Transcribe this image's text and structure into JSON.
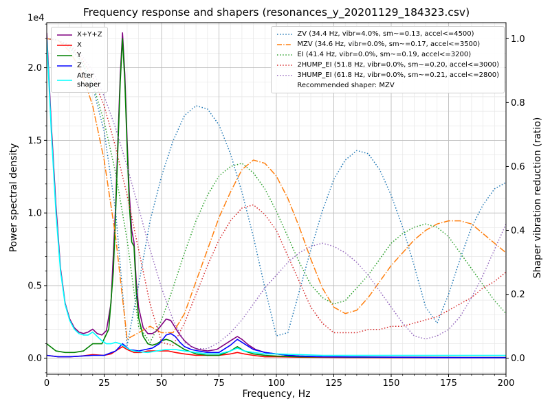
{
  "chart_data": {
    "type": "line",
    "title": "Frequency response and shapers (resonances_y_20201129_184323.csv)",
    "xlabel": "Frequency, Hz",
    "ylabel": "Power spectral density",
    "ylabel_right": "Shaper vibration reduction (ratio)",
    "y_left_offset_text": "1e4",
    "x_range": [
      0,
      200
    ],
    "y_left_range": [
      -0.11,
      2.31
    ],
    "y_right_range": [
      -0.05,
      1.05
    ],
    "x_ticks": [
      "0",
      "25",
      "50",
      "75",
      "100",
      "125",
      "150",
      "175",
      "200"
    ],
    "y_left_ticks": [
      "0.0",
      "0.5",
      "1.0",
      "1.5",
      "2.0"
    ],
    "y_right_ticks": [
      "0.0",
      "0.2",
      "0.4",
      "0.6",
      "0.8",
      "1.0"
    ],
    "x_minor_step": 5,
    "y_left_minor_step": 0.1,
    "grid": true,
    "legend_left_loc": "upper left",
    "legend_right_loc": "upper right",
    "recommended_shaper_note": "Recommended shaper: MZV",
    "colors": {
      "grid_major": "#bdbdbd",
      "grid_minor": "#e6e6e6",
      "spine": "#000000"
    },
    "psd_series": [
      {
        "key": "xyz",
        "label": "X+Y+Z",
        "color": "#800080",
        "style": "solid",
        "axis": "left",
        "x": [
          0,
          2,
          4,
          6,
          8,
          10,
          12,
          14,
          16,
          18,
          20,
          22,
          24,
          26,
          28,
          30,
          31,
          32,
          33,
          34,
          35,
          36,
          37,
          38,
          39,
          40,
          42,
          44,
          46,
          48,
          50,
          52,
          54,
          56,
          58,
          60,
          63,
          66,
          70,
          74,
          78,
          81,
          83,
          85,
          88,
          91,
          95,
          100,
          105,
          110,
          120,
          140,
          160,
          180,
          200
        ],
        "y": [
          2.24,
          1.6,
          1.05,
          0.62,
          0.38,
          0.27,
          0.21,
          0.18,
          0.17,
          0.18,
          0.2,
          0.17,
          0.16,
          0.19,
          0.38,
          1.05,
          1.5,
          1.95,
          2.24,
          1.95,
          1.5,
          1.12,
          0.88,
          0.8,
          0.52,
          0.35,
          0.21,
          0.17,
          0.17,
          0.19,
          0.23,
          0.27,
          0.26,
          0.21,
          0.16,
          0.12,
          0.08,
          0.06,
          0.05,
          0.06,
          0.1,
          0.13,
          0.15,
          0.13,
          0.09,
          0.06,
          0.04,
          0.03,
          0.02,
          0.015,
          0.01,
          0.008,
          0.007,
          0.006,
          0.006
        ]
      },
      {
        "key": "x",
        "label": "X",
        "color": "#ff0000",
        "style": "solid",
        "axis": "left",
        "x": [
          0,
          5,
          10,
          15,
          20,
          25,
          28,
          31,
          33,
          35,
          38,
          41,
          44,
          47,
          50,
          53,
          56,
          60,
          65,
          70,
          75,
          80,
          83,
          86,
          90,
          95,
          100,
          110,
          130,
          160,
          200
        ],
        "y": [
          0.02,
          0.01,
          0.01,
          0.015,
          0.025,
          0.02,
          0.03,
          0.06,
          0.08,
          0.06,
          0.04,
          0.04,
          0.05,
          0.05,
          0.05,
          0.05,
          0.04,
          0.03,
          0.02,
          0.02,
          0.02,
          0.03,
          0.04,
          0.03,
          0.02,
          0.01,
          0.01,
          0.007,
          0.005,
          0.004,
          0.004
        ]
      },
      {
        "key": "y",
        "label": "Y",
        "color": "#008000",
        "style": "solid",
        "axis": "left",
        "x": [
          0,
          4,
          8,
          12,
          16,
          20,
          24,
          27,
          29,
          30,
          31,
          32,
          33,
          34,
          35,
          36,
          37,
          38,
          39,
          40,
          42,
          44,
          46,
          48,
          50,
          52,
          54,
          57,
          60,
          65,
          70,
          75,
          80,
          83,
          86,
          90,
          95,
          100,
          110,
          130,
          160,
          200
        ],
        "y": [
          0.1,
          0.05,
          0.04,
          0.04,
          0.05,
          0.1,
          0.1,
          0.2,
          0.6,
          1.0,
          1.45,
          1.9,
          2.2,
          1.9,
          1.45,
          1.05,
          0.8,
          0.77,
          0.45,
          0.28,
          0.15,
          0.1,
          0.09,
          0.1,
          0.12,
          0.13,
          0.12,
          0.09,
          0.06,
          0.03,
          0.02,
          0.02,
          0.05,
          0.08,
          0.05,
          0.03,
          0.02,
          0.015,
          0.01,
          0.008,
          0.006,
          0.005
        ]
      },
      {
        "key": "z",
        "label": "Z",
        "color": "#0000ff",
        "style": "solid",
        "axis": "left",
        "x": [
          0,
          5,
          10,
          15,
          20,
          25,
          30,
          33,
          36,
          40,
          43,
          46,
          49,
          52,
          54,
          56,
          58,
          60,
          63,
          66,
          70,
          75,
          80,
          83,
          86,
          90,
          95,
          100,
          105,
          110,
          120,
          140,
          170,
          200
        ],
        "y": [
          0.02,
          0.01,
          0.01,
          0.015,
          0.02,
          0.02,
          0.05,
          0.1,
          0.06,
          0.05,
          0.06,
          0.07,
          0.1,
          0.16,
          0.17,
          0.15,
          0.11,
          0.08,
          0.06,
          0.05,
          0.04,
          0.04,
          0.09,
          0.13,
          0.1,
          0.06,
          0.04,
          0.03,
          0.02,
          0.015,
          0.01,
          0.008,
          0.005,
          0.004
        ]
      },
      {
        "key": "after_shaper",
        "label": "After\nshaper",
        "color": "#00ffff",
        "style": "solid",
        "axis": "left",
        "x": [
          0,
          2,
          4,
          6,
          8,
          10,
          12,
          14,
          16,
          18,
          20,
          22,
          24,
          26,
          28,
          30,
          32,
          34,
          36,
          38,
          40,
          44,
          48,
          52,
          56,
          60,
          65,
          70,
          75,
          80,
          83,
          86,
          90,
          95,
          100,
          110,
          120,
          140,
          160,
          180,
          200
        ],
        "y": [
          2.2,
          1.55,
          1.0,
          0.6,
          0.37,
          0.26,
          0.2,
          0.17,
          0.16,
          0.16,
          0.18,
          0.15,
          0.12,
          0.1,
          0.1,
          0.11,
          0.1,
          0.08,
          0.06,
          0.05,
          0.045,
          0.04,
          0.05,
          0.06,
          0.06,
          0.05,
          0.04,
          0.03,
          0.03,
          0.05,
          0.07,
          0.05,
          0.04,
          0.03,
          0.03,
          0.025,
          0.02,
          0.02,
          0.02,
          0.02,
          0.02
        ]
      }
    ],
    "shaper_x": [
      0,
      5,
      10,
      15,
      20,
      25,
      30,
      35,
      40,
      45,
      50,
      55,
      60,
      65,
      70,
      75,
      80,
      85,
      90,
      95,
      100,
      105,
      110,
      115,
      120,
      125,
      130,
      135,
      140,
      145,
      150,
      155,
      160,
      165,
      170,
      175,
      180,
      185,
      190,
      195,
      200
    ],
    "shaper_series": [
      {
        "key": "zv",
        "label": "ZV (34.4 Hz, vibr=4.0%, sm~=0.13, accel<=4500)",
        "color": "#1f77b4",
        "style": "dotted",
        "axis": "right",
        "y": [
          1.0,
          0.995,
          0.97,
          0.93,
          0.85,
          0.71,
          0.46,
          0.04,
          0.23,
          0.43,
          0.57,
          0.68,
          0.76,
          0.79,
          0.78,
          0.73,
          0.64,
          0.52,
          0.38,
          0.22,
          0.07,
          0.08,
          0.21,
          0.34,
          0.46,
          0.56,
          0.62,
          0.65,
          0.64,
          0.59,
          0.51,
          0.41,
          0.29,
          0.16,
          0.11,
          0.2,
          0.31,
          0.41,
          0.48,
          0.53,
          0.55
        ]
      },
      {
        "key": "mzv",
        "label": "MZV (34.6 Hz, vibr=0.0%, sm~=0.17, accel<=3500)",
        "color": "#ff7f0e",
        "style": "dashdot",
        "axis": "right",
        "y": [
          1.0,
          0.995,
          0.96,
          0.9,
          0.79,
          0.62,
          0.38,
          0.06,
          0.08,
          0.1,
          0.08,
          0.08,
          0.14,
          0.24,
          0.34,
          0.44,
          0.52,
          0.59,
          0.62,
          0.61,
          0.57,
          0.5,
          0.41,
          0.31,
          0.22,
          0.16,
          0.14,
          0.15,
          0.19,
          0.24,
          0.29,
          0.33,
          0.37,
          0.4,
          0.42,
          0.43,
          0.43,
          0.42,
          0.39,
          0.36,
          0.33
        ]
      },
      {
        "key": "ei",
        "label": "EI (41.4 Hz, vibr=0.0%, sm~=0.19, accel<=3200)",
        "color": "#2ca02c",
        "style": "dotted",
        "axis": "right",
        "y": [
          1.0,
          0.995,
          0.975,
          0.93,
          0.86,
          0.74,
          0.58,
          0.37,
          0.1,
          0.05,
          0.12,
          0.22,
          0.33,
          0.43,
          0.51,
          0.57,
          0.6,
          0.61,
          0.58,
          0.53,
          0.46,
          0.38,
          0.3,
          0.23,
          0.19,
          0.17,
          0.18,
          0.22,
          0.26,
          0.31,
          0.36,
          0.39,
          0.41,
          0.42,
          0.41,
          0.38,
          0.33,
          0.28,
          0.23,
          0.18,
          0.14
        ]
      },
      {
        "key": "2hump_ei",
        "label": "2HUMP_EI (51.8 Hz, vibr=0.0%, sm~=0.20, accel<=3000)",
        "color": "#d62728",
        "style": "dotted",
        "axis": "right",
        "y": [
          1.0,
          0.995,
          0.98,
          0.94,
          0.88,
          0.79,
          0.66,
          0.51,
          0.34,
          0.17,
          0.05,
          0.04,
          0.11,
          0.2,
          0.29,
          0.37,
          0.43,
          0.47,
          0.48,
          0.45,
          0.4,
          0.32,
          0.24,
          0.16,
          0.11,
          0.08,
          0.08,
          0.08,
          0.09,
          0.09,
          0.1,
          0.1,
          0.11,
          0.12,
          0.13,
          0.15,
          0.17,
          0.19,
          0.22,
          0.24,
          0.27
        ]
      },
      {
        "key": "3hump_ei",
        "label": "3HUMP_EI (61.8 Hz, vibr=0.0%, sm~=0.21, accel<=2800)",
        "color": "#9467bd",
        "style": "dotted",
        "axis": "right",
        "y": [
          1.0,
          0.995,
          0.98,
          0.95,
          0.9,
          0.82,
          0.72,
          0.6,
          0.47,
          0.34,
          0.22,
          0.12,
          0.05,
          0.03,
          0.03,
          0.05,
          0.08,
          0.12,
          0.17,
          0.22,
          0.26,
          0.3,
          0.33,
          0.35,
          0.36,
          0.35,
          0.33,
          0.3,
          0.26,
          0.21,
          0.16,
          0.11,
          0.07,
          0.06,
          0.07,
          0.09,
          0.13,
          0.19,
          0.26,
          0.34,
          0.42
        ]
      }
    ]
  }
}
